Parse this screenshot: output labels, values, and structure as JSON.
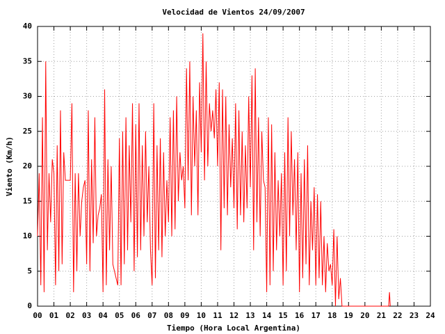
{
  "chart_data": {
    "type": "line",
    "title": "Velocidad de Vientos 24/09/2007",
    "x_label": "Tiempo (Hora Local Argentina)",
    "y_label": "Viento (Km/h)",
    "xlim": [
      0,
      24
    ],
    "ylim": [
      0,
      40
    ],
    "xticks": [
      {
        "value": 0,
        "label": "00"
      },
      {
        "value": 1,
        "label": "01"
      },
      {
        "value": 2,
        "label": "02"
      },
      {
        "value": 3,
        "label": "03"
      },
      {
        "value": 4,
        "label": "04"
      },
      {
        "value": 5,
        "label": "05"
      },
      {
        "value": 6,
        "label": "06"
      },
      {
        "value": 7,
        "label": "07"
      },
      {
        "value": 8,
        "label": "08"
      },
      {
        "value": 9,
        "label": "09"
      },
      10,
      11,
      12,
      13,
      14,
      15,
      16,
      17,
      18,
      19,
      20,
      21,
      22,
      23,
      24
    ],
    "yticks": [
      0,
      5,
      10,
      15,
      20,
      25,
      30,
      35,
      40
    ],
    "grid": true,
    "series": [
      {
        "color": "#ff0000",
        "x": [
          0,
          0.1,
          0.2,
          0.3,
          0.4,
          0.5,
          0.6,
          0.7,
          0.8,
          0.9,
          1,
          1.1,
          1.2,
          1.3,
          1.4,
          1.5,
          1.6,
          1.7,
          1.8,
          1.9,
          2,
          2.1,
          2.2,
          2.3,
          2.4,
          2.5,
          2.6,
          2.7,
          2.8,
          2.9,
          3,
          3.1,
          3.2,
          3.3,
          3.4,
          3.5,
          3.6,
          3.7,
          3.8,
          3.9,
          4,
          4.1,
          4.2,
          4.3,
          4.4,
          4.5,
          4.6,
          4.7,
          4.8,
          4.9,
          5,
          5.1,
          5.2,
          5.3,
          5.4,
          5.5,
          5.6,
          5.7,
          5.8,
          5.9,
          6,
          6.1,
          6.2,
          6.3,
          6.4,
          6.5,
          6.6,
          6.7,
          6.8,
          6.9,
          7,
          7.1,
          7.2,
          7.3,
          7.4,
          7.5,
          7.6,
          7.7,
          7.8,
          7.9,
          8,
          8.1,
          8.2,
          8.3,
          8.4,
          8.5,
          8.6,
          8.7,
          8.8,
          8.9,
          9,
          9.1,
          9.2,
          9.3,
          9.4,
          9.5,
          9.6,
          9.7,
          9.8,
          9.9,
          10,
          10.1,
          10.2,
          10.3,
          10.4,
          10.5,
          10.6,
          10.7,
          10.8,
          10.9,
          11,
          11.1,
          11.2,
          11.3,
          11.4,
          11.5,
          11.6,
          11.7,
          11.8,
          11.9,
          12,
          12.1,
          12.2,
          12.3,
          12.4,
          12.5,
          12.6,
          12.7,
          12.8,
          12.9,
          13,
          13.1,
          13.2,
          13.3,
          13.4,
          13.5,
          13.6,
          13.7,
          13.8,
          13.9,
          14,
          14.1,
          14.2,
          14.3,
          14.4,
          14.5,
          14.6,
          14.7,
          14.8,
          14.9,
          15,
          15.1,
          15.2,
          15.3,
          15.4,
          15.5,
          15.6,
          15.7,
          15.8,
          15.9,
          16,
          16.1,
          16.2,
          16.3,
          16.4,
          16.5,
          16.6,
          16.7,
          16.8,
          16.9,
          17,
          17.1,
          17.2,
          17.3,
          17.4,
          17.5,
          17.6,
          17.7,
          17.8,
          17.9,
          18,
          18.1,
          18.2,
          18.3,
          18.4,
          18.5,
          18.6,
          18.7,
          18.8,
          18.9,
          19,
          21.45,
          21.5,
          21.55
        ],
        "values": [
          10,
          19,
          3,
          27,
          2,
          35,
          8,
          19,
          12,
          21,
          19,
          3,
          23,
          5,
          28,
          6,
          22,
          18,
          18,
          18,
          18,
          29,
          2,
          19,
          5,
          19,
          10,
          15,
          17,
          18,
          6,
          28,
          5,
          21,
          9,
          27,
          10,
          13,
          14,
          16,
          2,
          31,
          3,
          21,
          8,
          20,
          6,
          5,
          4,
          3,
          24,
          3,
          25,
          6,
          27,
          8,
          23,
          12,
          29,
          5,
          26,
          7,
          29,
          8,
          23,
          10,
          25,
          12,
          20,
          8,
          3,
          29,
          4,
          23,
          8,
          24,
          7,
          22,
          10,
          18,
          12,
          27,
          10,
          28,
          11,
          30,
          15,
          22,
          18,
          20,
          14,
          34,
          18,
          35,
          13,
          30,
          20,
          28,
          13,
          32,
          22,
          39,
          18,
          35,
          20,
          29,
          25,
          28,
          24,
          31,
          20,
          32,
          8,
          31,
          14,
          30,
          13,
          26,
          17,
          24,
          14,
          29,
          11,
          28,
          13,
          25,
          12,
          23,
          14,
          30,
          17,
          33,
          8,
          34,
          12,
          27,
          10,
          25,
          18,
          17,
          2,
          27,
          3,
          26,
          5,
          22,
          8,
          18,
          10,
          19,
          3,
          22,
          5,
          27,
          10,
          25,
          13,
          21,
          8,
          22,
          2,
          19,
          4,
          21,
          6,
          23,
          3,
          15,
          8,
          17,
          3,
          16,
          4,
          15,
          3,
          10,
          2,
          9,
          5,
          6,
          3,
          11,
          0,
          10,
          1,
          4,
          0,
          0,
          0,
          0,
          0,
          0,
          2,
          0
        ]
      }
    ]
  }
}
